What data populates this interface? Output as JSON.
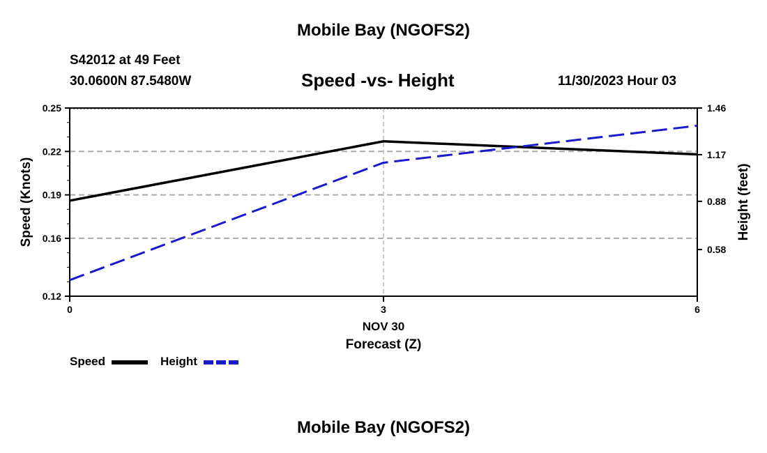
{
  "page": {
    "title_top": "Mobile Bay (NGOFS2)",
    "title_bottom": "Mobile Bay (NGOFS2)",
    "station": "S42012 at 49 Feet",
    "coords": "30.0600N  87.5480W",
    "datetime": "11/30/2023 Hour 03"
  },
  "chart_data": {
    "type": "line",
    "title": "Speed -vs- Height",
    "xlabel_date": "NOV 30",
    "xlabel": "Forecast (Z)",
    "ylabel": "Speed (Knots)",
    "ylabel_right": "Height (feet)",
    "x": [
      0,
      3,
      6
    ],
    "x_ticks": [
      "0",
      "3",
      "6"
    ],
    "xlim": [
      0,
      6
    ],
    "ylim": [
      0.12,
      0.25
    ],
    "y_ticks": [
      "0.25",
      "0.22",
      "0.19",
      "0.16",
      "0.12"
    ],
    "y_tick_values": [
      0.25,
      0.22,
      0.19,
      0.16,
      0.12
    ],
    "y2lim": [
      0.29,
      1.46
    ],
    "y2_ticks": [
      "1.46",
      "1.17",
      "0.88",
      "0.58"
    ],
    "y2_tick_values": [
      1.46,
      1.17,
      0.88,
      0.58
    ],
    "grid": true,
    "series": [
      {
        "name": "Speed",
        "axis": "left",
        "color": "#000000",
        "dash": "solid",
        "values": [
          0.186,
          0.227,
          0.218
        ]
      },
      {
        "name": "Height",
        "axis": "right",
        "color": "#1a1acc",
        "dash": "dashed",
        "values": [
          0.39,
          1.12,
          1.35
        ]
      }
    ],
    "legend": [
      "Speed",
      "Height"
    ]
  }
}
